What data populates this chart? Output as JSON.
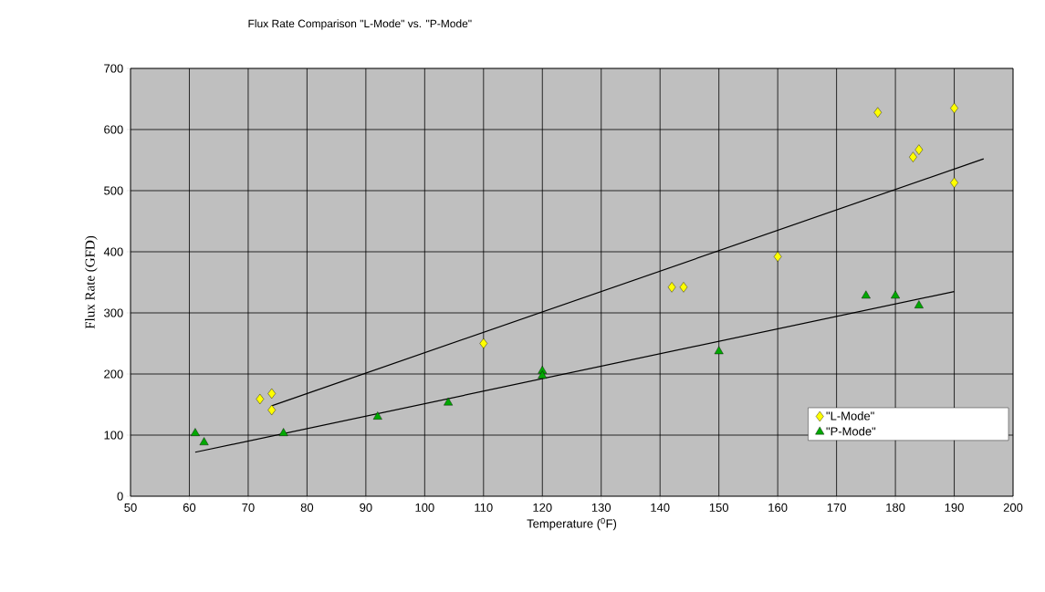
{
  "chart_data": {
    "type": "scatter",
    "title": "Flux Rate Comparison \"L-Mode\" vs. \"P-Mode\"",
    "xlabel": "Temperature ($^{0}$F)",
    "ylabel": "Flux Rate (GFD)",
    "xlim": [
      50,
      200
    ],
    "ylim": [
      0,
      700
    ],
    "xticks": [
      50,
      60,
      70,
      80,
      90,
      100,
      110,
      120,
      130,
      140,
      150,
      160,
      170,
      180,
      190,
      200
    ],
    "yticks": [
      0,
      100,
      200,
      300,
      400,
      500,
      600,
      700
    ],
    "grid": true,
    "legend": "bottom right",
    "series": [
      {
        "name": "\"L-Mode\"",
        "color": "#ffff00",
        "marker": "diamond",
        "x": [
          72,
          74,
          74,
          110,
          142,
          144,
          160,
          177,
          183,
          184,
          190,
          190
        ],
        "values": [
          159,
          168,
          141,
          250,
          342,
          342,
          392,
          628,
          555,
          567,
          635,
          513
        ]
      },
      {
        "name": "\"P-Mode\"",
        "color": "#00a800",
        "marker": "triangle",
        "x": [
          61,
          62.5,
          76,
          92,
          104,
          120,
          120,
          150,
          175,
          180,
          184
        ],
        "values": [
          103,
          88,
          103,
          130,
          153,
          205,
          197,
          237,
          328,
          328,
          312
        ]
      },
      {
        "type": "line",
        "color": "#000000",
        "marker": "none",
        "x": [
          74,
          195
        ],
        "values": [
          148,
          552
        ]
      },
      {
        "type": "line",
        "color": "#000000",
        "marker": "none",
        "x": [
          61,
          190
        ],
        "values": [
          72,
          335
        ]
      }
    ]
  }
}
